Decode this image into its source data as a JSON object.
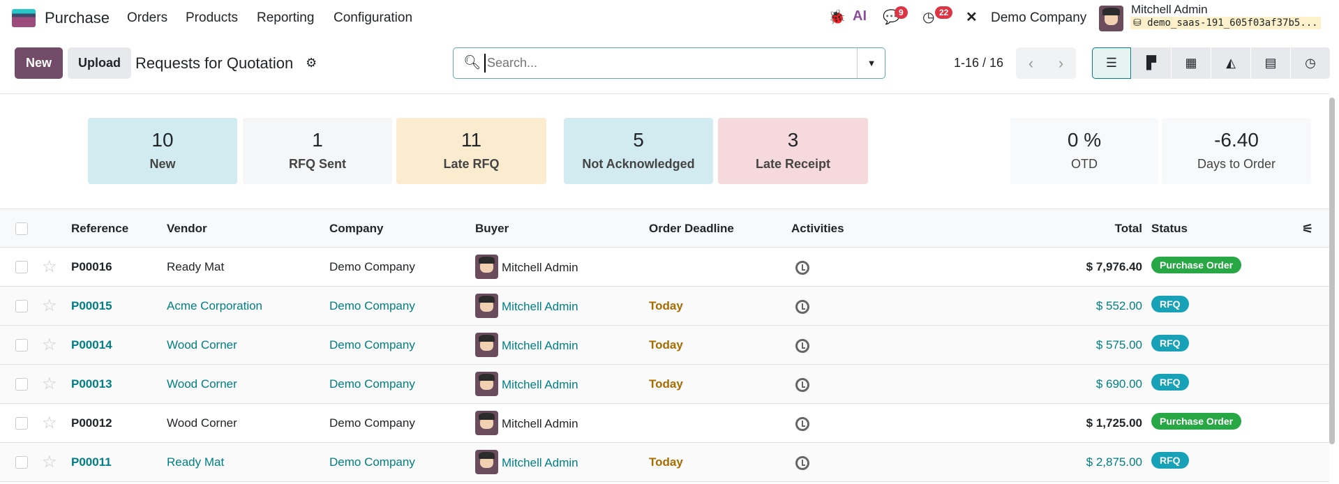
{
  "navbar": {
    "app": "Purchase",
    "menus": [
      "Orders",
      "Products",
      "Reporting",
      "Configuration"
    ],
    "messages_count": "9",
    "activities_count": "22",
    "company": "Demo Company",
    "user": "Mitchell Admin",
    "database": "demo_saas-191_605f03af37b5..."
  },
  "control": {
    "new_label": "New",
    "upload_label": "Upload",
    "title": "Requests for Quotation",
    "search_placeholder": "Search...",
    "pager": "1-16 / 16"
  },
  "stats": [
    {
      "value": "10",
      "label": "New",
      "color": "#d2ebf0"
    },
    {
      "value": "1",
      "label": "RFQ Sent",
      "color": "#f5f6f7"
    },
    {
      "value": "11",
      "label": "Late RFQ",
      "color": "#fbecd0"
    },
    {
      "value": "5",
      "label": "Not Acknowledged",
      "color": "#d2ebf0"
    },
    {
      "value": "3",
      "label": "Late Receipt",
      "color": "#f6d9dc"
    },
    {
      "value": "0 %",
      "label": "OTD",
      "color": "#f8f9fa"
    },
    {
      "value": "-6.40",
      "label": "Days to Order",
      "color": "#f8f9fa"
    }
  ],
  "table": {
    "headers": {
      "reference": "Reference",
      "vendor": "Vendor",
      "company": "Company",
      "buyer": "Buyer",
      "deadline": "Order Deadline",
      "activities": "Activities",
      "total": "Total",
      "status": "Status"
    },
    "rows": [
      {
        "ref": "P00016",
        "vendor": "Ready Mat",
        "company": "Demo Company",
        "buyer": "Mitchell Admin",
        "deadline": "",
        "total": "$ 7,976.40",
        "status": "Purchase Order"
      },
      {
        "ref": "P00015",
        "vendor": "Acme Corporation",
        "company": "Demo Company",
        "buyer": "Mitchell Admin",
        "deadline": "Today",
        "total": "$ 552.00",
        "status": "RFQ"
      },
      {
        "ref": "P00014",
        "vendor": "Wood Corner",
        "company": "Demo Company",
        "buyer": "Mitchell Admin",
        "deadline": "Today",
        "total": "$ 575.00",
        "status": "RFQ"
      },
      {
        "ref": "P00013",
        "vendor": "Wood Corner",
        "company": "Demo Company",
        "buyer": "Mitchell Admin",
        "deadline": "Today",
        "total": "$ 690.00",
        "status": "RFQ"
      },
      {
        "ref": "P00012",
        "vendor": "Wood Corner",
        "company": "Demo Company",
        "buyer": "Mitchell Admin",
        "deadline": "",
        "total": "$ 1,725.00",
        "status": "Purchase Order"
      },
      {
        "ref": "P00011",
        "vendor": "Ready Mat",
        "company": "Demo Company",
        "buyer": "Mitchell Admin",
        "deadline": "Today",
        "total": "$ 2,875.00",
        "status": "RFQ"
      }
    ]
  },
  "colors": {
    "primary": "#714b67",
    "po": "#28a745",
    "rfq": "#17a2b8",
    "link": "#017e84"
  }
}
